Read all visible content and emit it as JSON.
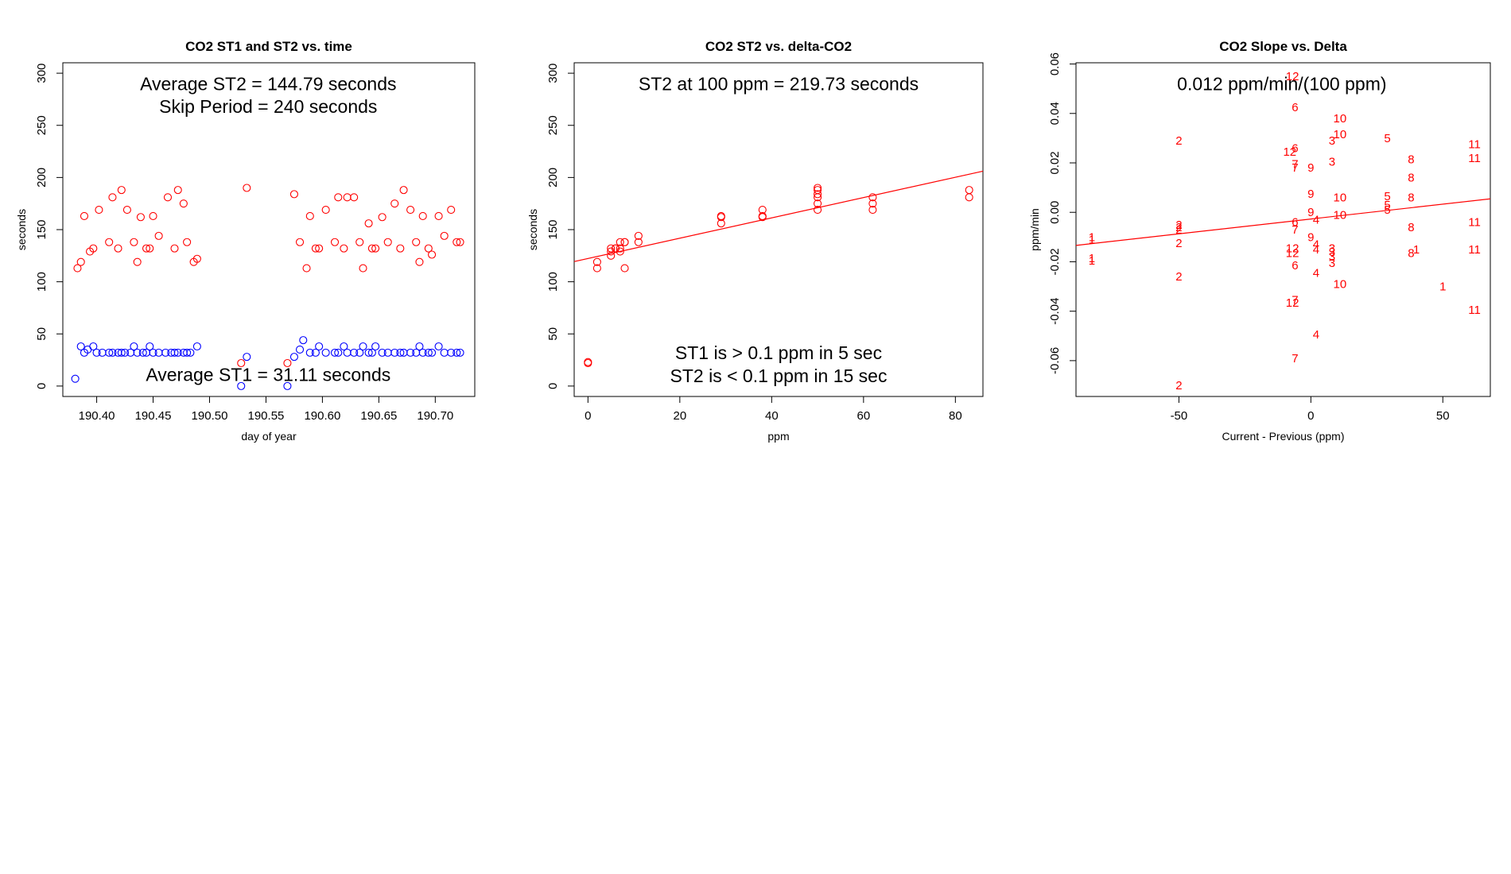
{
  "chart_data": [
    {
      "type": "scatter",
      "title": "CO2 ST1 and ST2 vs. time",
      "xlabel": "day of year",
      "ylabel": "seconds",
      "xlim": [
        190.37,
        190.735
      ],
      "ylim": [
        -10,
        310
      ],
      "xticks": [
        190.4,
        190.45,
        190.5,
        190.55,
        190.6,
        190.65,
        190.7
      ],
      "xtick_labels": [
        "190.40",
        "190.45",
        "190.50",
        "190.55",
        "190.60",
        "190.65",
        "190.70"
      ],
      "yticks": [
        0,
        50,
        100,
        150,
        200,
        250,
        300
      ],
      "ytick_labels": [
        "0",
        "50",
        "100",
        "150",
        "200",
        "250",
        "300"
      ],
      "grid": false,
      "annotations": [
        {
          "text": "Average ST2 =  144.79  seconds",
          "x": 190.552,
          "y": 290
        },
        {
          "text": "Skip Period =  240  seconds",
          "x": 190.552,
          "y": 268
        },
        {
          "text": "Average ST1 =  31.11  seconds",
          "x": 190.552,
          "y": 11
        }
      ],
      "series": [
        {
          "color": "#ff0000",
          "marker": "circle",
          "x": [
            190.383,
            190.386,
            190.389,
            190.394,
            190.397,
            190.402,
            190.411,
            190.414,
            190.419,
            190.422,
            190.427,
            190.433,
            190.436,
            190.439,
            190.444,
            190.447,
            190.45,
            190.455,
            190.463,
            190.469,
            190.472,
            190.477,
            190.48,
            190.486,
            190.489,
            190.528,
            190.533,
            190.569,
            190.575,
            190.58,
            190.586,
            190.589,
            190.594,
            190.597,
            190.603,
            190.611,
            190.614,
            190.619,
            190.622,
            190.628,
            190.633,
            190.636,
            190.641,
            190.644,
            190.647,
            190.653,
            190.658,
            190.664,
            190.669,
            190.672,
            190.678,
            190.683,
            190.686,
            190.689,
            190.694,
            190.697,
            190.703,
            190.708,
            190.714,
            190.719,
            190.722
          ],
          "y": [
            113,
            119,
            163,
            129,
            132,
            169,
            138,
            181,
            132,
            188,
            169,
            138,
            119,
            162,
            132,
            132,
            163,
            144,
            181,
            132,
            188,
            175,
            138,
            119,
            122,
            22,
            190,
            22,
            184,
            138,
            113,
            163,
            132,
            132,
            169,
            138,
            181,
            132,
            181,
            181,
            138,
            113,
            156,
            132,
            132,
            162,
            138,
            175,
            132,
            188,
            169,
            138,
            119,
            163,
            132,
            126,
            163,
            144,
            169,
            138,
            138
          ]
        },
        {
          "color": "#0000ff",
          "marker": "circle",
          "x": [
            190.381,
            190.386,
            190.389,
            190.392,
            190.397,
            190.4,
            190.405,
            190.411,
            190.414,
            190.419,
            190.422,
            190.425,
            190.43,
            190.433,
            190.436,
            190.441,
            190.444,
            190.447,
            190.45,
            190.455,
            190.461,
            190.466,
            190.469,
            190.472,
            190.477,
            190.48,
            190.483,
            190.489,
            190.528,
            190.533,
            190.569,
            190.575,
            190.58,
            190.583,
            190.589,
            190.594,
            190.597,
            190.603,
            190.611,
            190.614,
            190.619,
            190.622,
            190.628,
            190.633,
            190.636,
            190.641,
            190.644,
            190.647,
            190.653,
            190.658,
            190.664,
            190.669,
            190.672,
            190.678,
            190.683,
            190.686,
            190.689,
            190.694,
            190.697,
            190.703,
            190.708,
            190.714,
            190.719,
            190.722
          ],
          "y": [
            7,
            38,
            32,
            35,
            38,
            32,
            32,
            32,
            32,
            32,
            32,
            32,
            32,
            38,
            32,
            32,
            32,
            38,
            32,
            32,
            32,
            32,
            32,
            32,
            32,
            32,
            32,
            38,
            0,
            28,
            0,
            28,
            35,
            44,
            32,
            32,
            38,
            32,
            32,
            32,
            38,
            32,
            32,
            32,
            38,
            32,
            32,
            38,
            32,
            32,
            32,
            32,
            32,
            32,
            32,
            38,
            32,
            32,
            32,
            38,
            32,
            32,
            32,
            32
          ]
        }
      ]
    },
    {
      "type": "scatter",
      "title": "CO2 ST2 vs. delta-CO2",
      "xlabel": "ppm",
      "ylabel": "seconds",
      "xlim": [
        -3,
        86
      ],
      "ylim": [
        -10,
        310
      ],
      "xticks": [
        0,
        20,
        40,
        60,
        80
      ],
      "xtick_labels": [
        "0",
        "20",
        "40",
        "60",
        "80"
      ],
      "yticks": [
        0,
        50,
        100,
        150,
        200,
        250,
        300
      ],
      "ytick_labels": [
        "0",
        "50",
        "100",
        "150",
        "200",
        "250",
        "300"
      ],
      "grid": false,
      "annotations": [
        {
          "text": "ST2 at 100 ppm =  219.73  seconds",
          "x": 41.5,
          "y": 290
        },
        {
          "text": "ST1 is > 0.1 ppm in 5 sec",
          "x": 41.5,
          "y": 32
        },
        {
          "text": "ST2 is < 0.1 ppm in 15 sec",
          "x": 41.5,
          "y": 10
        }
      ],
      "fit_line": {
        "color": "#ff0000",
        "intercept": 122.3,
        "slope": 0.974
      },
      "series": [
        {
          "color": "#ff0000",
          "marker": "circle",
          "x": [
            0,
            0,
            2,
            2,
            5,
            5,
            5,
            6,
            6,
            7,
            7,
            7,
            8,
            8,
            8,
            11,
            11,
            29,
            29,
            29,
            38,
            38,
            38,
            50,
            50,
            50,
            50,
            50,
            50,
            62,
            62,
            62,
            83,
            83
          ],
          "y": [
            22,
            23,
            113,
            119,
            125,
            129,
            132,
            132,
            132,
            129,
            132,
            138,
            138,
            138,
            113,
            138,
            144,
            156,
            162,
            163,
            162,
            163,
            169,
            169,
            175,
            181,
            184,
            188,
            190,
            169,
            175,
            181,
            181,
            188
          ]
        }
      ]
    },
    {
      "type": "scatter",
      "title": "CO2 Slope vs. Delta",
      "xlabel": "Current - Previous (ppm)",
      "ylabel": "ppm/min",
      "xlim": [
        -89,
        68
      ],
      "ylim": [
        -0.0745,
        0.0605
      ],
      "xticks": [
        -50,
        0,
        50
      ],
      "xtick_labels": [
        "-50",
        "0",
        "50"
      ],
      "yticks": [
        -0.06,
        -0.04,
        -0.02,
        0.0,
        0.02,
        0.04,
        0.06
      ],
      "ytick_labels": [
        "-0.06",
        "-0.04",
        "-0.02",
        "0.00",
        "0.02",
        "0.04",
        "0.06"
      ],
      "grid": false,
      "annotations": [
        {
          "text": "0.012  ppm/min/(100 ppm)",
          "x": -11,
          "y": 0.052
        }
      ],
      "fit_line": {
        "color": "#ff0000",
        "intercept": -0.0027,
        "slope": 0.00012
      },
      "series": [
        {
          "color": "#ff0000",
          "marker": "text",
          "points": [
            {
              "x": -83,
              "y": -0.01,
              "label": "1"
            },
            {
              "x": -83,
              "y": -0.011,
              "label": "1"
            },
            {
              "x": -83,
              "y": -0.0185,
              "label": "1"
            },
            {
              "x": -83,
              "y": -0.0195,
              "label": "1"
            },
            {
              "x": 50,
              "y": -0.03,
              "label": "1"
            },
            {
              "x": 40,
              "y": -0.015,
              "label": "1"
            },
            {
              "x": -50,
              "y": 0.029,
              "label": "2"
            },
            {
              "x": -50,
              "y": -0.005,
              "label": "2"
            },
            {
              "x": -50,
              "y": -0.006,
              "label": "2"
            },
            {
              "x": -50,
              "y": -0.007,
              "label": "2"
            },
            {
              "x": -50,
              "y": -0.0125,
              "label": "2"
            },
            {
              "x": -50,
              "y": -0.026,
              "label": "2"
            },
            {
              "x": -50,
              "y": -0.07,
              "label": "2"
            },
            {
              "x": 8,
              "y": 0.029,
              "label": "3"
            },
            {
              "x": 8,
              "y": 0.0205,
              "label": "3"
            },
            {
              "x": 8,
              "y": -0.0145,
              "label": "3"
            },
            {
              "x": 8,
              "y": -0.016,
              "label": "3"
            },
            {
              "x": 8,
              "y": -0.018,
              "label": "3"
            },
            {
              "x": 8,
              "y": -0.0205,
              "label": "3"
            },
            {
              "x": 2,
              "y": -0.003,
              "label": "4"
            },
            {
              "x": 2,
              "y": -0.013,
              "label": "4"
            },
            {
              "x": 2,
              "y": -0.015,
              "label": "4"
            },
            {
              "x": 2,
              "y": -0.0245,
              "label": "4"
            },
            {
              "x": 2,
              "y": -0.0495,
              "label": "4"
            },
            {
              "x": 29,
              "y": 0.03,
              "label": "5"
            },
            {
              "x": 29,
              "y": 0.0065,
              "label": "5"
            },
            {
              "x": 29,
              "y": 0.003,
              "label": "5"
            },
            {
              "x": 29,
              "y": 0.001,
              "label": "5"
            },
            {
              "x": -6,
              "y": 0.0425,
              "label": "6"
            },
            {
              "x": -6,
              "y": 0.026,
              "label": "6"
            },
            {
              "x": -6,
              "y": -0.004,
              "label": "6"
            },
            {
              "x": -6,
              "y": -0.0215,
              "label": "6"
            },
            {
              "x": -6,
              "y": 0.0195,
              "label": "7"
            },
            {
              "x": -6,
              "y": 0.018,
              "label": "7"
            },
            {
              "x": -6,
              "y": -0.007,
              "label": "7"
            },
            {
              "x": -6,
              "y": -0.0355,
              "label": "7"
            },
            {
              "x": -6,
              "y": -0.059,
              "label": "7"
            },
            {
              "x": 38,
              "y": 0.0215,
              "label": "8"
            },
            {
              "x": 38,
              "y": 0.014,
              "label": "8"
            },
            {
              "x": 38,
              "y": 0.006,
              "label": "8"
            },
            {
              "x": 38,
              "y": -0.006,
              "label": "8"
            },
            {
              "x": 38,
              "y": -0.0165,
              "label": "8"
            },
            {
              "x": 0,
              "y": 0.018,
              "label": "9"
            },
            {
              "x": 0,
              "y": 0.0075,
              "label": "9"
            },
            {
              "x": 0,
              "y": 0.0,
              "label": "9"
            },
            {
              "x": 0,
              "y": -0.01,
              "label": "9"
            },
            {
              "x": 11,
              "y": 0.038,
              "label": "10"
            },
            {
              "x": 11,
              "y": 0.0315,
              "label": "10"
            },
            {
              "x": 11,
              "y": 0.006,
              "label": "10"
            },
            {
              "x": 11,
              "y": -0.001,
              "label": "10"
            },
            {
              "x": 11,
              "y": -0.029,
              "label": "10"
            },
            {
              "x": 62,
              "y": 0.0275,
              "label": "11"
            },
            {
              "x": 62,
              "y": 0.022,
              "label": "11"
            },
            {
              "x": 62,
              "y": -0.004,
              "label": "11"
            },
            {
              "x": 62,
              "y": -0.015,
              "label": "11"
            },
            {
              "x": 62,
              "y": -0.0395,
              "label": "11"
            },
            {
              "x": -7,
              "y": 0.055,
              "label": "12"
            },
            {
              "x": -8,
              "y": 0.0245,
              "label": "12"
            },
            {
              "x": -7,
              "y": -0.0145,
              "label": "12"
            },
            {
              "x": -7,
              "y": -0.0165,
              "label": "12"
            },
            {
              "x": -7,
              "y": -0.0365,
              "label": "12"
            }
          ]
        }
      ]
    }
  ]
}
